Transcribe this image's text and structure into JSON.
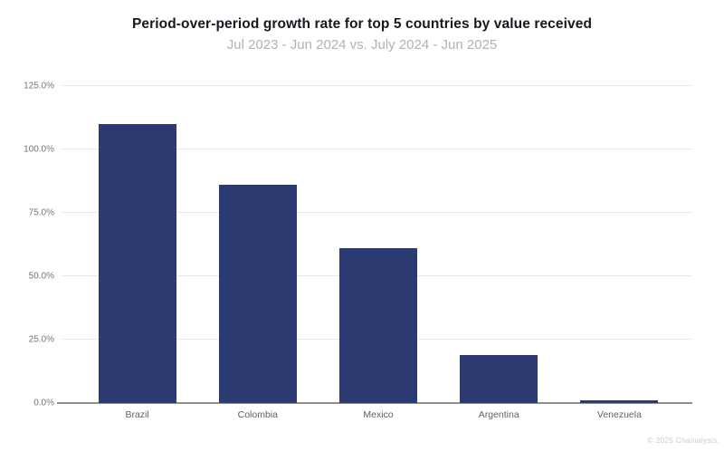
{
  "chart_data": {
    "type": "bar",
    "title": "Period-over-period growth rate for top 5 countries by value received",
    "subtitle": "Jul 2023 - Jun 2024 vs. July 2024 - Jun 2025",
    "categories": [
      "Brazil",
      "Colombia",
      "Mexico",
      "Argentina",
      "Venezuela"
    ],
    "values": [
      110,
      86,
      61,
      19,
      1
    ],
    "unit": "%",
    "xlabel": "",
    "ylabel": "",
    "ylim": [
      0,
      125
    ],
    "yticks": [
      0,
      25,
      50,
      75,
      100,
      125
    ],
    "ytick_labels": [
      "0.0%",
      "25.0%",
      "50.0%",
      "75.0%",
      "100.0%",
      "125.0%"
    ],
    "grid": "horizontal",
    "legend": "none",
    "bar_color": "#2b3a70"
  },
  "footer": {
    "copyright": "© 2025 Chainalysis."
  },
  "colors": {
    "bar": "#2b3a70",
    "gridline": "#e8e8e8",
    "baseline": "#8f8f8f",
    "y_tick_label": "#757575",
    "x_category_label": "#5e6166",
    "title": "#17171f",
    "subtitle": "#b2b2b6",
    "footer": "#cbcbcf",
    "background": "#ffffff"
  }
}
